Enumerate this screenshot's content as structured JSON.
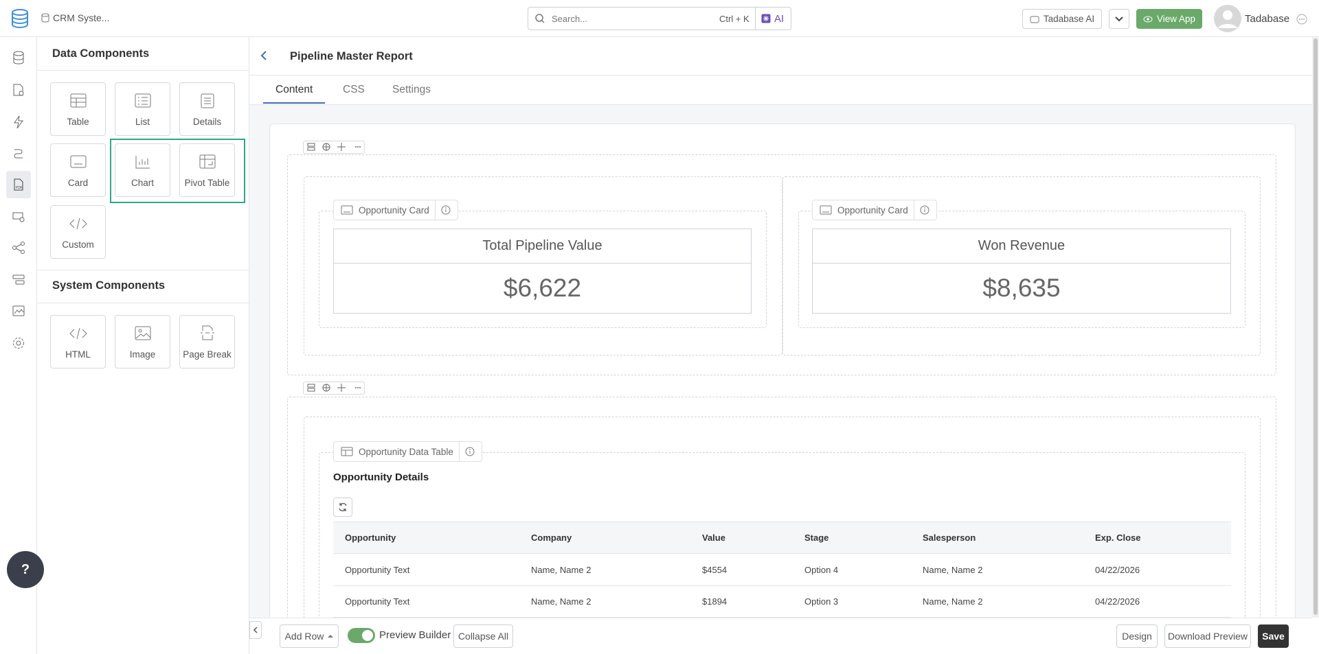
{
  "topbar": {
    "app_name": "CRM Syste...",
    "search_placeholder": "Search...",
    "shortcut": "Ctrl + K",
    "ai": "AI",
    "tadabase_ai": "Tadabase AI",
    "view_app": "View App",
    "user": "Tadabase"
  },
  "panel": {
    "data_title": "Data Components",
    "data_items": [
      "Table",
      "List",
      "Details",
      "Card",
      "Chart",
      "Pivot Table",
      "Custom"
    ],
    "system_title": "System Components",
    "system_items": [
      "HTML",
      "Image",
      "Page Break"
    ]
  },
  "editor": {
    "title": "Pipeline Master Report",
    "tabs": [
      "Content",
      "CSS",
      "Settings"
    ],
    "cards": [
      {
        "label": "Opportunity Card",
        "heading": "Total Pipeline Value",
        "value": "$6,622"
      },
      {
        "label": "Opportunity Card",
        "heading": "Won Revenue",
        "value": "$8,635"
      }
    ],
    "table": {
      "label": "Opportunity Data Table",
      "title": "Opportunity Details",
      "columns": [
        "Opportunity",
        "Company",
        "Value",
        "Stage",
        "Salesperson",
        "Exp. Close"
      ],
      "rows": [
        [
          "Opportunity Text",
          "Name, Name 2",
          "$4554",
          "Option 4",
          "Name, Name 2",
          "04/22/2026"
        ],
        [
          "Opportunity Text",
          "Name, Name 2",
          "$1894",
          "Option 3",
          "Name, Name 2",
          "04/22/2026"
        ]
      ]
    }
  },
  "footer": {
    "add_row": "Add Row",
    "preview": "Preview Builder",
    "collapse": "Collapse All",
    "design": "Design",
    "download": "Download Preview",
    "save": "Save"
  },
  "help": "?"
}
